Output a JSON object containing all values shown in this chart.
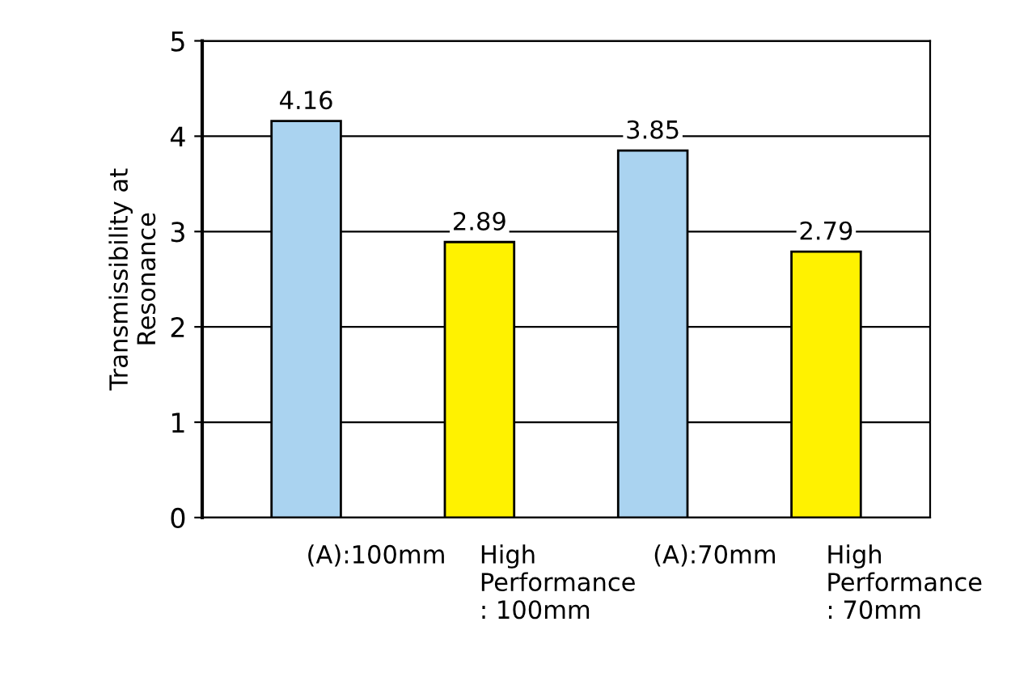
{
  "chart_data": {
    "type": "bar",
    "ylabel": "Transmissibility at\nResonance",
    "categories": [
      "(A):100mm",
      "High\nPerformance\n: 100mm",
      "(A):70mm",
      "High\nPerformance\n: 70mm"
    ],
    "values": [
      4.16,
      2.89,
      3.85,
      2.79
    ],
    "colors": [
      "#aad3f0",
      "#fff200",
      "#aad3f0",
      "#fff200"
    ],
    "ylim": [
      0,
      5
    ],
    "yticks": [
      0,
      1,
      2,
      3,
      4,
      5
    ],
    "grid": "y",
    "data_labels": true
  }
}
